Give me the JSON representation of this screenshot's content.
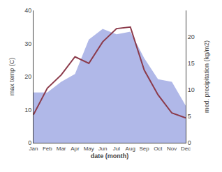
{
  "chart_data": {
    "type": "line",
    "categories": [
      "Jan",
      "Feb",
      "Mar",
      "Apr",
      "May",
      "Jun",
      "Jul",
      "Aug",
      "Sep",
      "Oct",
      "Nov",
      "Dec"
    ],
    "xlabel": "date (month)",
    "ylabel": "max temp (C)",
    "y2label": "med. precipitation (kg/m2)",
    "series": [
      {
        "type": "area",
        "axis": "y2",
        "color": "#b0b8e8",
        "values": [
          9.5,
          9.5,
          11.5,
          13.0,
          19.5,
          21.5,
          20.5,
          21.0,
          16.0,
          12.0,
          11.5,
          7.0
        ]
      },
      {
        "type": "line",
        "color": "#8b3a4a",
        "values": [
          8.5,
          16.5,
          20.5,
          26.0,
          24.0,
          30.5,
          34.5,
          35.0,
          22.0,
          14.5,
          9.0,
          7.5
        ]
      }
    ],
    "ylim": [
      0,
      40
    ],
    "yticks": [
      0,
      10,
      20,
      30,
      40
    ],
    "y2lim": [
      0,
      25
    ],
    "y2ticks": [
      0,
      5,
      10,
      15,
      20
    ],
    "grid": false
  }
}
